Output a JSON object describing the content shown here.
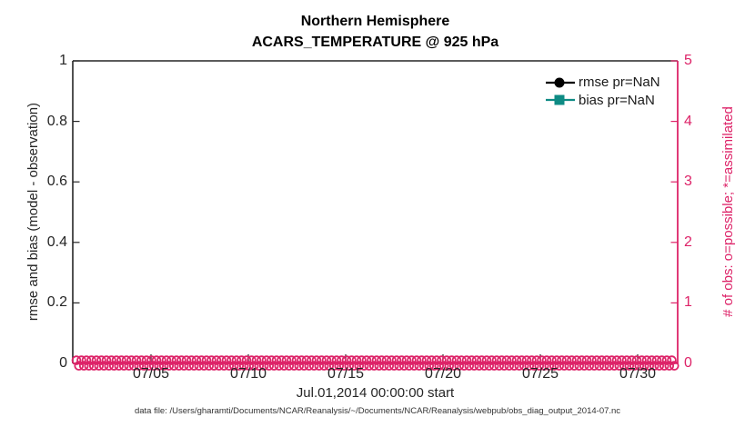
{
  "title": {
    "line1": "Northern Hemisphere",
    "line2": "ACARS_TEMPERATURE @ 925 hPa"
  },
  "axes": {
    "left": {
      "label": "rmse and bias (model - observation)",
      "ticks": [
        "0",
        "0.2",
        "0.4",
        "0.6",
        "0.8",
        "1"
      ],
      "color": "#262626"
    },
    "right": {
      "label": "# of obs: o=possible; *=assimilated",
      "ticks": [
        "0",
        "1",
        "2",
        "3",
        "4",
        "5"
      ],
      "color": "#DD2368"
    },
    "x": {
      "label": "Jul.01,2014 00:00:00 start",
      "ticks": [
        "07/05",
        "07/10",
        "07/15",
        "07/20",
        "07/25",
        "07/30"
      ]
    }
  },
  "legend": {
    "entries": [
      {
        "label": "rmse pr=NaN",
        "color": "#000000",
        "marker": "circle"
      },
      {
        "label": "bias pr=NaN",
        "color": "#0E8B84",
        "marker": "square"
      }
    ]
  },
  "footer": {
    "data_file": "data file: /Users/gharamti/Documents/NCAR/Reanalysis/~/Documents/NCAR/Reanalysis/webpub/obs_diag_output_2014-07.nc"
  },
  "colors": {
    "obs_pink": "#DD2368",
    "bias_teal": "#0E8B84",
    "axis_dark": "#262626"
  },
  "chart_data": {
    "type": "line",
    "title": "Northern Hemisphere",
    "subtitle": "ACARS_TEMPERATURE @ 925 hPa",
    "xlabel": "Jul.01,2014 00:00:00 start",
    "ylabel_left": "rmse and bias (model - observation)",
    "ylabel_right": "# of obs: o=possible; *=assimilated",
    "ylim_left": [
      0,
      1
    ],
    "ylim_right": [
      0,
      5
    ],
    "x_range": [
      "2014-07-01 00:00",
      "2014-08-01 00:00"
    ],
    "x_tick_labels": [
      "07/05",
      "07/10",
      "07/15",
      "07/20",
      "07/25",
      "07/30"
    ],
    "grid": false,
    "legend_position": "top-right inside, no box",
    "series": [
      {
        "name": "rmse pr=NaN",
        "axis": "left",
        "color": "#000000",
        "marker": "circle",
        "values": "NaN — no curve plotted"
      },
      {
        "name": "bias pr=NaN",
        "axis": "left",
        "color": "#0E8B84",
        "marker": "square",
        "values": "NaN — no curve plotted"
      },
      {
        "name": "# of obs possible (o markers)",
        "axis": "right",
        "color": "#DD2368",
        "marker": "o",
        "constant_value": 0,
        "note": "dense row of markers at y=0 spanning full x range"
      },
      {
        "name": "# of obs assimilated (* markers)",
        "axis": "right",
        "color": "#DD2368",
        "marker": "*",
        "constant_value": 0,
        "note": "dense row of markers at y=0 spanning full x range"
      }
    ]
  }
}
